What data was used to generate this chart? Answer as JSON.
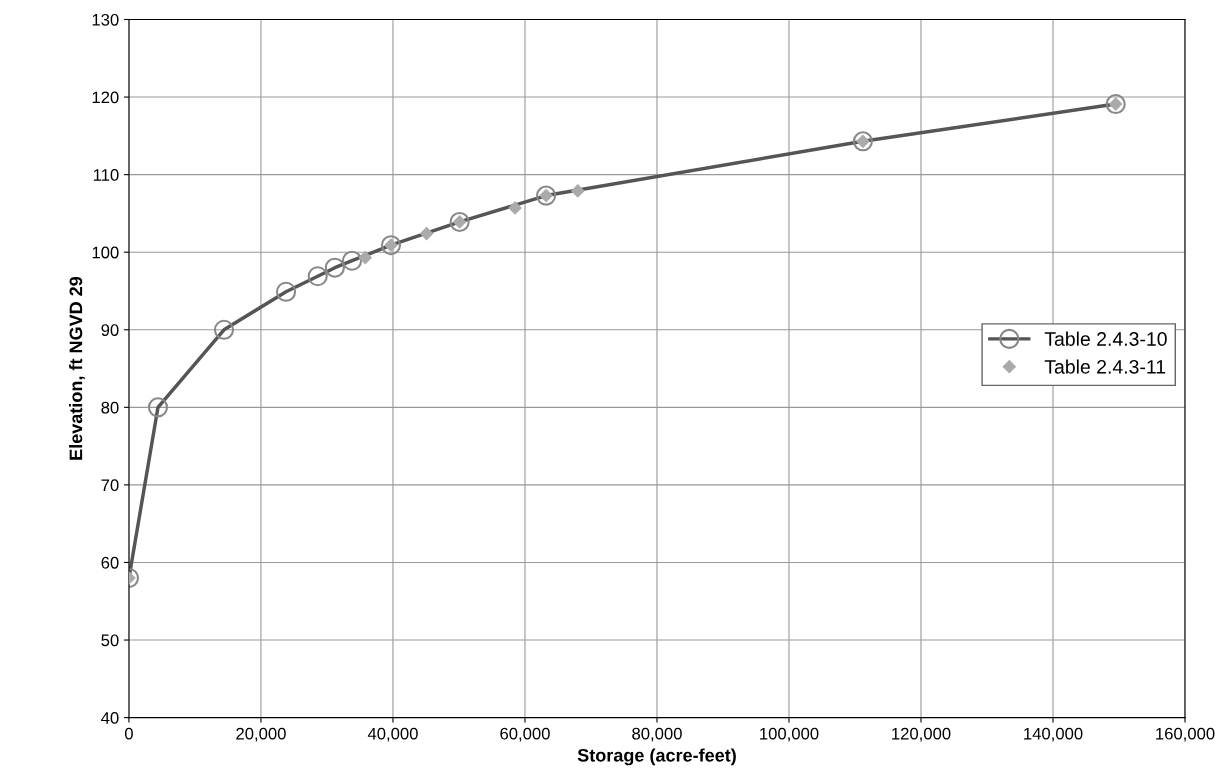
{
  "chart_data": {
    "type": "line",
    "xlabel": "Storage (acre-feet)",
    "ylabel": "Elevation, ft NGVD 29",
    "series": [
      {
        "name": "Table 2.4.3-10",
        "marker": "circle",
        "color": "#555555",
        "x": [
          0,
          4400,
          14400,
          23800,
          28600,
          31200,
          33800,
          39700,
          50100,
          63200,
          111200,
          149500
        ],
        "values": [
          58,
          80,
          90,
          94.9,
          96.9,
          98.0,
          98.9,
          100.9,
          103.9,
          107.3,
          114.3,
          119.1
        ]
      },
      {
        "name": "Table 2.4.3-11",
        "type": "scatter",
        "marker": "diamond",
        "color": "#aaaaaa",
        "x": [
          0,
          35800,
          39700,
          45100,
          50100,
          58500,
          63200,
          68000,
          111200,
          149500
        ],
        "values": [
          58,
          99.3,
          100.9,
          102.4,
          103.9,
          105.7,
          107.3,
          107.9,
          114.3,
          119.1
        ]
      }
    ],
    "xlim": [
      0,
      160000
    ],
    "xticks": [
      0,
      {
        "value": 20000,
        "label": "20,000"
      },
      {
        "value": 40000,
        "label": "40,000"
      },
      {
        "value": 60000,
        "label": "60,000"
      },
      {
        "value": 80000,
        "label": "80,000"
      },
      {
        "value": 100000,
        "label": "100,000"
      },
      {
        "value": 120000,
        "label": "120,000"
      },
      {
        "value": 140000,
        "label": "140,000"
      },
      {
        "value": 160000,
        "label": "160,000"
      }
    ],
    "ylim": [
      40,
      130
    ],
    "yticks": [
      40,
      50,
      60,
      70,
      80,
      90,
      100,
      110,
      120,
      130
    ],
    "grid": true,
    "legend": "right"
  }
}
